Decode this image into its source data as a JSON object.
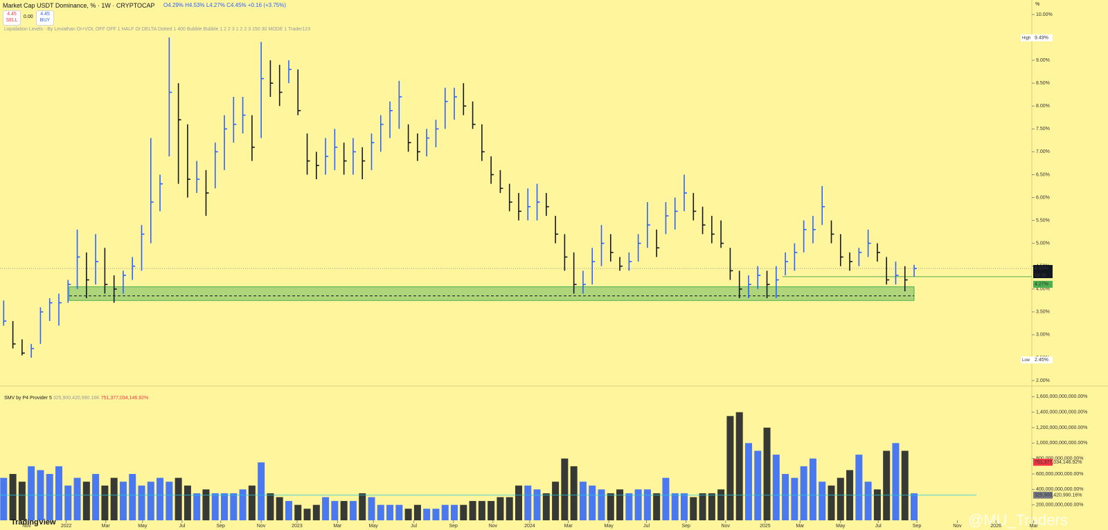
{
  "header": {
    "title": "Market Cap USDT Dominance, % · 1W · CRYPTOCAP",
    "ohlc": "O4.29% H4.53% L4.27% C4.45% +0.16 (+3.75%)",
    "sell": "4.45",
    "sell_label": "SELL",
    "spread": "0.00",
    "buy": "4.45",
    "buy_label": "BUY",
    "indicator": "Liquidation Levels - By Leviathan OI+VOL OFF OFF 1 HALF OI DELTA Dotted 1 400 Bubble Bubble 1 2 2 3 1 2 2 3 150 30 MODE 1 Trader123",
    "volume_indicator": "SMV by P4 Provider 5",
    "volume_value_a": "325,900,420,990.16K",
    "volume_value_b": "751,377,034,146.92%",
    "unit": "%",
    "brand": "TradingView",
    "watermark": "@MU_Traders"
  },
  "chart_data": [
    {
      "type": "ohlc",
      "xlim": [
        -0.4,
        111.8
      ],
      "ylim": [
        2,
        10
      ],
      "xticks": [
        {
          "value": 2.5,
          "label": "Nov"
        },
        {
          "value": 6.8,
          "label": "2022"
        },
        {
          "value": 11.1,
          "label": "Mar"
        },
        {
          "value": 15.1,
          "label": "May"
        },
        {
          "value": 19.4,
          "label": "Jul"
        },
        {
          "value": 23.6,
          "label": "Sep"
        },
        {
          "value": 28.0,
          "label": "Nov"
        },
        {
          "value": 31.9,
          "label": "2023"
        },
        {
          "value": 36.3,
          "label": "Mar"
        },
        {
          "value": 40.2,
          "label": "May"
        },
        {
          "value": 44.6,
          "label": "Jul"
        },
        {
          "value": 48.9,
          "label": "Sep"
        },
        {
          "value": 53.2,
          "label": "Nov"
        },
        {
          "value": 57.2,
          "label": "2024"
        },
        {
          "value": 61.4,
          "label": "Mar"
        },
        {
          "value": 65.8,
          "label": "May"
        },
        {
          "value": 69.9,
          "label": "Jul"
        },
        {
          "value": 74.2,
          "label": "Sep"
        },
        {
          "value": 78.5,
          "label": "Nov"
        },
        {
          "value": 82.8,
          "label": "2025"
        },
        {
          "value": 86.6,
          "label": "Mar"
        },
        {
          "value": 91.0,
          "label": "May"
        },
        {
          "value": 95.1,
          "label": "Jul"
        },
        {
          "value": 99.3,
          "label": "Sep"
        },
        {
          "value": 103.7,
          "label": "Nov"
        },
        {
          "value": 107.9,
          "label": "2026"
        },
        {
          "value": 112.0,
          "label": "Mar"
        }
      ],
      "yticks": [
        {
          "value": 2,
          "label": "2.00%"
        },
        {
          "value": 2.5,
          "label": "2.50%"
        },
        {
          "value": 3,
          "label": "3.00%"
        },
        {
          "value": 3.5,
          "label": "3.50%"
        },
        {
          "value": 4,
          "label": "4.00%"
        },
        {
          "value": 4.5,
          "label": "4.50%"
        },
        {
          "value": 5,
          "label": "5.00%"
        },
        {
          "value": 5.5,
          "label": "5.50%"
        },
        {
          "value": 6,
          "label": "6.00%"
        },
        {
          "value": 6.5,
          "label": "6.50%"
        },
        {
          "value": 7,
          "label": "7.00%"
        },
        {
          "value": 7.5,
          "label": "7.50%"
        },
        {
          "value": 8,
          "label": "8.00%"
        },
        {
          "value": 8.5,
          "label": "8.50%"
        },
        {
          "value": 9,
          "label": "9.00%"
        },
        {
          "value": 9.5,
          "label": "9.50%"
        },
        {
          "value": 10,
          "label": "10.00%"
        }
      ],
      "up_color": "#2962ff",
      "down_color": "#131722",
      "high": [
        3.75,
        3.3,
        2.9,
        2.8,
        3.6,
        3.8,
        3.9,
        4.2,
        5.3,
        4.8,
        5.2,
        4.9,
        4.3,
        4.4,
        4.7,
        5.4,
        7.3,
        6.5,
        9.5,
        8.5,
        7.6,
        6.8,
        6.6,
        7.2,
        7.8,
        8.2,
        8.2,
        7.8,
        9.4,
        9.0,
        8.9,
        9.0,
        8.8,
        7.4,
        7.0,
        7.3,
        7.5,
        7.2,
        7.3,
        7.1,
        7.4,
        7.8,
        8.1,
        8.55,
        7.6,
        7.4,
        7.5,
        7.7,
        8.4,
        8.4,
        8.5,
        8.1,
        7.6,
        6.9,
        6.6,
        6.3,
        6.1,
        6.2,
        6.3,
        6.1,
        5.6,
        5.2,
        4.8,
        4.4,
        4.9,
        5.4,
        5.2,
        4.7,
        4.8,
        5.2,
        5.9,
        5.3,
        5.9,
        6.0,
        6.5,
        6.1,
        5.8,
        5.6,
        5.5,
        4.9,
        4.4,
        4.3,
        4.5,
        4.4,
        4.5,
        4.8,
        5.0,
        5.5,
        5.6,
        6.25,
        5.5,
        5.2,
        4.8,
        4.9,
        5.3,
        5.0,
        4.7,
        4.6,
        4.5,
        4.53
      ],
      "low": [
        3.2,
        2.7,
        2.55,
        2.5,
        2.8,
        3.3,
        3.2,
        3.7,
        4.0,
        3.8,
        4.1,
        3.9,
        3.7,
        3.9,
        4.2,
        4.4,
        5.0,
        5.7,
        6.9,
        6.3,
        6.0,
        6.1,
        5.6,
        6.2,
        6.6,
        7.2,
        7.4,
        6.8,
        7.3,
        8.2,
        8.0,
        8.5,
        7.8,
        6.5,
        6.4,
        6.5,
        6.6,
        6.5,
        6.5,
        6.4,
        6.6,
        7.0,
        7.3,
        7.5,
        7.0,
        6.8,
        6.9,
        7.1,
        7.5,
        7.7,
        7.8,
        7.5,
        6.8,
        6.3,
        6.1,
        5.7,
        5.5,
        5.5,
        5.5,
        5.6,
        5.0,
        4.4,
        3.9,
        3.9,
        4.1,
        4.5,
        4.6,
        4.4,
        4.4,
        4.6,
        4.9,
        4.7,
        5.2,
        5.3,
        5.7,
        5.5,
        5.2,
        5.0,
        4.9,
        4.2,
        3.8,
        3.8,
        4.0,
        3.8,
        3.8,
        4.3,
        4.4,
        4.8,
        5.0,
        5.4,
        5.0,
        4.5,
        4.4,
        4.5,
        4.7,
        4.6,
        4.1,
        4.1,
        3.95,
        4.27
      ],
      "close": [
        3.3,
        2.8,
        2.6,
        2.7,
        3.5,
        3.7,
        3.7,
        4.1,
        4.7,
        4.2,
        4.6,
        4.1,
        4.0,
        4.3,
        4.5,
        5.2,
        5.9,
        6.3,
        8.3,
        7.7,
        6.4,
        6.4,
        6.1,
        7.0,
        7.5,
        7.6,
        7.8,
        7.1,
        8.6,
        8.5,
        8.3,
        8.8,
        7.9,
        6.8,
        6.7,
        6.9,
        7.1,
        6.8,
        7.0,
        6.8,
        7.2,
        7.6,
        7.9,
        8.2,
        7.2,
        7.0,
        7.3,
        7.5,
        8.1,
        8.2,
        8.0,
        7.6,
        7.0,
        6.5,
        6.2,
        5.9,
        5.7,
        5.8,
        5.9,
        5.8,
        5.2,
        4.7,
        4.1,
        4.1,
        4.6,
        5.0,
        4.8,
        4.5,
        4.6,
        5.0,
        5.4,
        4.9,
        5.6,
        5.7,
        6.1,
        5.7,
        5.4,
        5.2,
        5.0,
        4.4,
        4.0,
        4.1,
        4.3,
        4.1,
        4.2,
        4.6,
        4.8,
        5.3,
        5.3,
        5.8,
        5.2,
        4.7,
        4.6,
        4.8,
        5.0,
        4.8,
        4.2,
        4.3,
        4.2,
        4.45
      ],
      "support_zone": [
        3.75,
        4.05
      ],
      "support_line": 3.85,
      "current": {
        "value": 4.45,
        "label": "4.45%",
        "countdown": "5d 9h"
      },
      "level": {
        "value": 4.27,
        "label": "4.27%"
      },
      "high_marker": {
        "name": "High",
        "value": 9.49,
        "label": "9.49%"
      },
      "low_marker": {
        "name": "Low",
        "value": 2.45,
        "label": "2.45%"
      }
    },
    {
      "type": "volume",
      "xlim": [
        -0.4,
        111.8
      ],
      "ylim": [
        0,
        1720000000000
      ],
      "yticks": [
        {
          "value": 200000000000,
          "label": "200,000,000,000.00%"
        },
        {
          "value": 400000000000,
          "label": "400,000,000,000.00%"
        },
        {
          "value": 600000000000,
          "label": "600,000,000,000.00%"
        },
        {
          "value": 800000000000,
          "label": "800,000,000,000.00%"
        },
        {
          "value": 1000000000000,
          "label": "1,000,000,000,000.00%"
        },
        {
          "value": 1200000000000,
          "label": "1,200,000,000,000.00%"
        },
        {
          "value": 1400000000000,
          "label": "1,400,000,000,000.00%"
        },
        {
          "value": 1600000000000,
          "label": "1,600,000,000,000.00%"
        }
      ],
      "up_color": "#2962ff",
      "down_color": "#131722",
      "values": [
        550000000000.0,
        600000000000.0,
        500000000000.0,
        700000000000.0,
        650000000000.0,
        600000000000.0,
        700000000000.0,
        450000000000.0,
        550000000000.0,
        500000000000.0,
        600000000000.0,
        450000000000.0,
        550000000000.0,
        500000000000.0,
        600000000000.0,
        450000000000.0,
        500000000000.0,
        550000000000.0,
        500000000000.0,
        550000000000.0,
        450000000000.0,
        350000000000.0,
        400000000000.0,
        350000000000.0,
        350000000000.0,
        350000000000.0,
        400000000000.0,
        450000000000.0,
        750000000000.0,
        350000000000.0,
        300000000000.0,
        250000000000.0,
        200000000000.0,
        150000000000.0,
        200000000000.0,
        300000000000.0,
        250000000000.0,
        250000000000.0,
        250000000000.0,
        350000000000.0,
        300000000000.0,
        200000000000.0,
        200000000000.0,
        200000000000.0,
        150000000000.0,
        200000000000.0,
        150000000000.0,
        150000000000.0,
        200000000000.0,
        200000000000.0,
        200000000000.0,
        250000000000.0,
        250000000000.0,
        250000000000.0,
        300000000000.0,
        300000000000.0,
        450000000000.0,
        450000000000.0,
        400000000000.0,
        350000000000.0,
        500000000000.0,
        800000000000.0,
        700000000000.0,
        500000000000.0,
        450000000000.0,
        400000000000.0,
        350000000000.0,
        400000000000.0,
        350000000000.0,
        400000000000.0,
        400000000000.0,
        350000000000.0,
        550000000000.0,
        350000000000.0,
        350000000000.0,
        300000000000.0,
        350000000000.0,
        350000000000.0,
        400000000000.0,
        1350000000000.0,
        1400000000000.0,
        1000000000000.0,
        900000000000.0,
        1200000000000.0,
        850000000000.0,
        600000000000.0,
        550000000000.0,
        700000000000.0,
        800000000000.0,
        500000000000.0,
        450000000000.0,
        550000000000.0,
        650000000000.0,
        850000000000.0,
        500000000000.0,
        400000000000.0,
        900000000000.0,
        1000000000000.0,
        900000000000.0,
        350000000000.0
      ],
      "avg": {
        "value": 325900420990.16,
        "label": "325,900,420,990.16%"
      },
      "last": {
        "value": 751377034146.92,
        "label": "751,377,034,146.92%"
      }
    }
  ]
}
